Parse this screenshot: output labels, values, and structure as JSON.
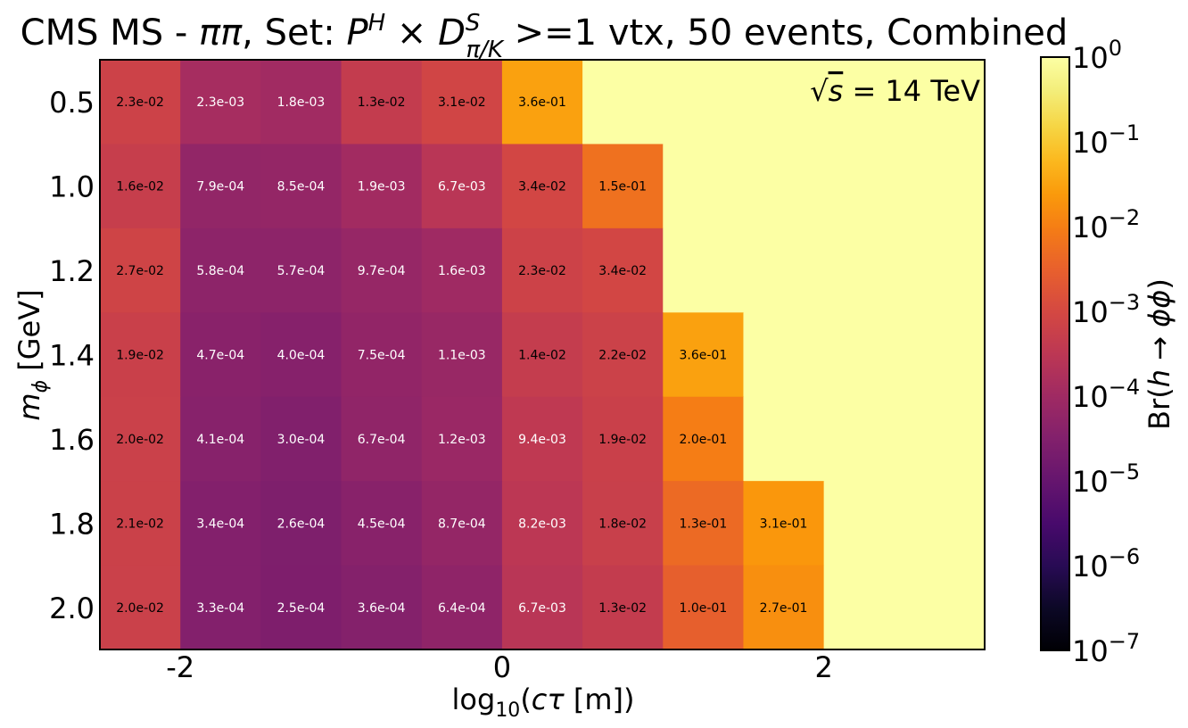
{
  "chart_data": {
    "type": "heatmap",
    "title": "CMS MS - ππ, Set: P^H × D^S_{π/K} >=1 vtx, 50 events, Combined",
    "title_parts": {
      "prefix": "CMS MS - ",
      "pipi": "ππ",
      "set": ", Set: ",
      "P": "P",
      "P_sup": "H",
      "times": " × ",
      "D": "D",
      "D_sup": "S",
      "D_sub": "π/K",
      "suffix": " >=1 vtx, 50 events, Combined"
    },
    "annotation": "√s = 14 TeV",
    "annotation_parts": {
      "sqrt": "√",
      "s": "s",
      "rest": " = 14 TeV"
    },
    "xlabel": "log10(cτ [m])",
    "xlabel_parts": {
      "log": "log",
      "sub": "10",
      "open": "(",
      "ct": "cτ",
      "rest": " [m])"
    },
    "ylabel": "m_ϕ [GeV]",
    "ylabel_parts": {
      "m": "m",
      "sub": "ϕ",
      "rest": " [GeV]"
    },
    "colorbar_label": "Br(h → ϕϕ)",
    "colorbar_label_parts": {
      "br": "Br(",
      "h": "h",
      "arrow": " → ",
      "phi": "ϕϕ",
      "close": ")"
    },
    "colorbar": {
      "scale": "log",
      "colormap": "inferno",
      "vmin": 1e-07,
      "vmax": 1,
      "ticks": [
        {
          "base": "10",
          "exp": "0",
          "value": 1
        },
        {
          "base": "10",
          "exp": "−1",
          "value": 0.1
        },
        {
          "base": "10",
          "exp": "−2",
          "value": 0.01
        },
        {
          "base": "10",
          "exp": "−3",
          "value": 0.001
        },
        {
          "base": "10",
          "exp": "−4",
          "value": 0.0001
        },
        {
          "base": "10",
          "exp": "−5",
          "value": 1e-05
        },
        {
          "base": "10",
          "exp": "−6",
          "value": 1e-06
        },
        {
          "base": "10",
          "exp": "−7",
          "value": 1e-07
        }
      ]
    },
    "x_centers": [
      -2.25,
      -1.75,
      -1.25,
      -0.75,
      -0.25,
      0.25,
      0.75,
      1.25,
      1.75,
      2.25,
      2.75
    ],
    "xlim": [
      -2.5,
      3.0
    ],
    "x_ticks": [
      {
        "value": -2,
        "label": "-2"
      },
      {
        "value": 0,
        "label": "0"
      },
      {
        "value": 2,
        "label": "2"
      }
    ],
    "y_categories": [
      "0.5",
      "1.0",
      "1.2",
      "1.4",
      "1.6",
      "1.8",
      "2.0"
    ],
    "fill_value": 1,
    "values": [
      [
        0.023,
        0.0023,
        0.0018,
        0.013,
        0.031,
        0.36,
        null,
        null,
        null,
        null,
        null
      ],
      [
        0.016,
        0.00079,
        0.00085,
        0.0019,
        0.0067,
        0.034,
        0.15,
        null,
        null,
        null,
        null
      ],
      [
        0.027,
        0.00058,
        0.00057,
        0.00097,
        0.0016,
        0.023,
        0.034,
        null,
        null,
        null,
        null
      ],
      [
        0.019,
        0.00047,
        0.0004,
        0.00075,
        0.0011,
        0.014,
        0.022,
        0.36,
        null,
        null,
        null
      ],
      [
        0.02,
        0.00041,
        0.0003,
        0.00067,
        0.0012,
        0.0094,
        0.019,
        0.2,
        null,
        null,
        null
      ],
      [
        0.021,
        0.00034,
        0.00026,
        0.00045,
        0.00087,
        0.0082,
        0.018,
        0.13,
        0.31,
        null,
        null
      ],
      [
        0.02,
        0.00033,
        0.00025,
        0.00036,
        0.00064,
        0.0067,
        0.013,
        0.1,
        0.27,
        null,
        null
      ]
    ],
    "labels": [
      [
        "2.3e-02",
        "2.3e-03",
        "1.8e-03",
        "1.3e-02",
        "3.1e-02",
        "3.6e-01",
        "",
        "",
        "",
        "",
        ""
      ],
      [
        "1.6e-02",
        "7.9e-04",
        "8.5e-04",
        "1.9e-03",
        "6.7e-03",
        "3.4e-02",
        "1.5e-01",
        "",
        "",
        "",
        ""
      ],
      [
        "2.7e-02",
        "5.8e-04",
        "5.7e-04",
        "9.7e-04",
        "1.6e-03",
        "2.3e-02",
        "3.4e-02",
        "",
        "",
        "",
        ""
      ],
      [
        "1.9e-02",
        "4.7e-04",
        "4.0e-04",
        "7.5e-04",
        "1.1e-03",
        "1.4e-02",
        "2.2e-02",
        "3.6e-01",
        "",
        "",
        ""
      ],
      [
        "2.0e-02",
        "4.1e-04",
        "3.0e-04",
        "6.7e-04",
        "1.2e-03",
        "9.4e-03",
        "1.9e-02",
        "2.0e-01",
        "",
        "",
        ""
      ],
      [
        "2.1e-02",
        "3.4e-04",
        "2.6e-04",
        "4.5e-04",
        "8.7e-04",
        "8.2e-03",
        "1.8e-02",
        "1.3e-01",
        "3.1e-01",
        "",
        ""
      ],
      [
        "2.0e-02",
        "3.3e-04",
        "2.5e-04",
        "3.6e-04",
        "6.4e-04",
        "6.7e-03",
        "1.3e-02",
        "1.0e-01",
        "2.7e-01",
        "",
        ""
      ]
    ]
  }
}
